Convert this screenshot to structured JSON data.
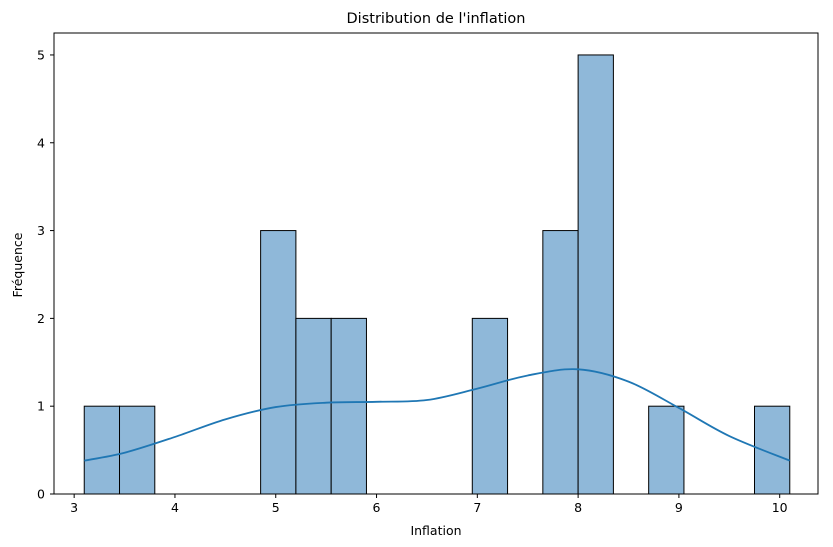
{
  "chart_data": {
    "type": "histogram",
    "title": "Distribution de l'inflation",
    "xlabel": "Inflation",
    "ylabel": "Fréquence",
    "xlim": [
      2.8,
      10.38
    ],
    "ylim": [
      0,
      5.25
    ],
    "xticks": [
      3,
      4,
      5,
      6,
      7,
      8,
      9,
      10
    ],
    "yticks": [
      0,
      1,
      2,
      3,
      4,
      5
    ],
    "bin_start": 3.1,
    "bin_width": 0.35,
    "bins": [
      {
        "x0": 3.1,
        "x1": 3.45,
        "count": 1
      },
      {
        "x0": 3.45,
        "x1": 3.8,
        "count": 1
      },
      {
        "x0": 3.8,
        "x1": 4.15,
        "count": 0
      },
      {
        "x0": 4.15,
        "x1": 4.5,
        "count": 0
      },
      {
        "x0": 4.5,
        "x1": 4.85,
        "count": 0
      },
      {
        "x0": 4.85,
        "x1": 5.2,
        "count": 3
      },
      {
        "x0": 5.2,
        "x1": 5.55,
        "count": 2
      },
      {
        "x0": 5.55,
        "x1": 5.9,
        "count": 2
      },
      {
        "x0": 5.9,
        "x1": 6.25,
        "count": 0
      },
      {
        "x0": 6.25,
        "x1": 6.6,
        "count": 0
      },
      {
        "x0": 6.6,
        "x1": 6.95,
        "count": 0
      },
      {
        "x0": 6.95,
        "x1": 7.3,
        "count": 2
      },
      {
        "x0": 7.3,
        "x1": 7.65,
        "count": 0
      },
      {
        "x0": 7.65,
        "x1": 8.0,
        "count": 3
      },
      {
        "x0": 8.0,
        "x1": 8.35,
        "count": 5
      },
      {
        "x0": 8.35,
        "x1": 8.7,
        "count": 0
      },
      {
        "x0": 8.7,
        "x1": 9.05,
        "count": 1
      },
      {
        "x0": 9.05,
        "x1": 9.4,
        "count": 0
      },
      {
        "x0": 9.4,
        "x1": 9.75,
        "count": 0
      },
      {
        "x0": 9.75,
        "x1": 10.1,
        "count": 1
      }
    ],
    "kde": {
      "x": [
        3.1,
        3.5,
        4.0,
        4.5,
        5.0,
        5.5,
        6.0,
        6.5,
        7.0,
        7.5,
        8.0,
        8.5,
        9.0,
        9.5,
        10.1
      ],
      "y": [
        0.38,
        0.47,
        0.65,
        0.85,
        0.99,
        1.04,
        1.05,
        1.07,
        1.2,
        1.35,
        1.42,
        1.28,
        0.98,
        0.66,
        0.38
      ]
    },
    "colors": {
      "bar_fill": "#8fb8d9",
      "bar_edge": "#000000",
      "kde_line": "#1f77b4"
    },
    "grid": false,
    "legend": "none"
  }
}
